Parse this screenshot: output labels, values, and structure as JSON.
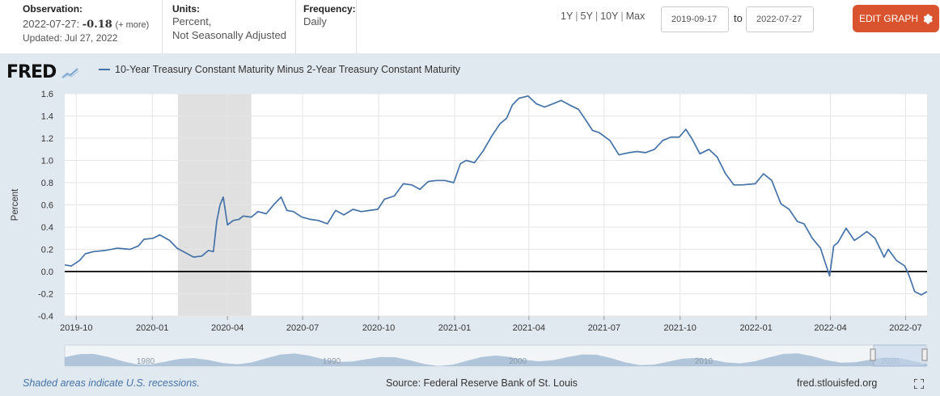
{
  "header": {
    "observation_label": "Observation:",
    "observation_date": "2022-07-27:",
    "observation_value": "-0.18",
    "observation_more": "(+ more)",
    "updated": "Updated: Jul 27, 2022",
    "units_label": "Units:",
    "units_line1": "Percent,",
    "units_line2": "Not Seasonally Adjusted",
    "frequency_label": "Frequency:",
    "frequency_value": "Daily",
    "range_1y": "1Y",
    "range_5y": "5Y",
    "range_10y": "10Y",
    "range_max": "Max",
    "range_sep": "|",
    "date_start": "2019-09-17",
    "date_to": "to",
    "date_end": "2022-07-27",
    "edit_button": "EDIT GRAPH"
  },
  "brand": {
    "logo_text": "FRED"
  },
  "footer": {
    "recession_note": "Shaded areas indicate U.S. recessions.",
    "source": "Source: Federal Reserve Bank of St. Louis",
    "site": "fred.stlouisfed.org"
  },
  "navigator_labels": [
    "1980",
    "1990",
    "2000",
    "2010",
    "2020"
  ],
  "colors": {
    "series": "#4572a7",
    "accent": "#d9542e",
    "recession": "#e0e0e0",
    "zero_line": "#000000"
  },
  "icons": {
    "edit": "gear-icon",
    "fullscreen": "fullscreen-icon",
    "logo_graph": "chart-icon"
  },
  "chart_data": {
    "type": "line",
    "title": "",
    "xlabel": "",
    "ylabel": "Percent",
    "ylim": [
      -0.4,
      1.6
    ],
    "yticks": [
      "1.6",
      "1.4",
      "1.2",
      "1.0",
      "0.8",
      "0.6",
      "0.4",
      "0.2",
      "0.0",
      "-0.2",
      "-0.4"
    ],
    "yticks_values": [
      1.6,
      1.4,
      1.2,
      1.0,
      0.8,
      0.6,
      0.4,
      0.2,
      0.0,
      -0.2,
      -0.4
    ],
    "xticks": [
      "2019-10",
      "2020-01",
      "2020-04",
      "2020-07",
      "2020-10",
      "2021-01",
      "2021-04",
      "2021-07",
      "2021-10",
      "2022-01",
      "2022-04",
      "2022-07"
    ],
    "xticks_dates": [
      "2019-10-01",
      "2020-01-01",
      "2020-04-01",
      "2020-07-01",
      "2020-10-01",
      "2021-01-01",
      "2021-04-01",
      "2021-07-01",
      "2021-10-01",
      "2022-01-01",
      "2022-04-01",
      "2022-07-01"
    ],
    "xrange": [
      "2019-09-17",
      "2022-07-27"
    ],
    "grid": true,
    "legend_position": "top-left",
    "recessions": [
      {
        "start": "2020-02-01",
        "end": "2020-04-30"
      }
    ],
    "series": [
      {
        "name": "10-Year Treasury Constant Maturity Minus 2-Year Treasury Constant Maturity",
        "x": [
          "2019-09-17",
          "2019-09-25",
          "2019-10-05",
          "2019-10-12",
          "2019-10-22",
          "2019-11-05",
          "2019-11-20",
          "2019-12-05",
          "2019-12-15",
          "2019-12-22",
          "2020-01-02",
          "2020-01-10",
          "2020-01-22",
          "2020-01-31",
          "2020-02-10",
          "2020-02-20",
          "2020-03-01",
          "2020-03-09",
          "2020-03-15",
          "2020-03-19",
          "2020-03-23",
          "2020-03-27",
          "2020-04-01",
          "2020-04-08",
          "2020-04-15",
          "2020-04-20",
          "2020-04-30",
          "2020-05-08",
          "2020-05-18",
          "2020-05-28",
          "2020-06-05",
          "2020-06-12",
          "2020-06-20",
          "2020-06-30",
          "2020-07-10",
          "2020-07-20",
          "2020-07-31",
          "2020-08-10",
          "2020-08-20",
          "2020-08-31",
          "2020-09-10",
          "2020-09-20",
          "2020-09-30",
          "2020-10-08",
          "2020-10-20",
          "2020-10-31",
          "2020-11-10",
          "2020-11-20",
          "2020-11-30",
          "2020-12-10",
          "2020-12-20",
          "2020-12-31",
          "2021-01-08",
          "2021-01-15",
          "2021-01-25",
          "2021-02-05",
          "2021-02-15",
          "2021-02-25",
          "2021-03-05",
          "2021-03-12",
          "2021-03-20",
          "2021-03-31",
          "2021-04-10",
          "2021-04-20",
          "2021-04-30",
          "2021-05-10",
          "2021-05-20",
          "2021-05-31",
          "2021-06-10",
          "2021-06-17",
          "2021-06-25",
          "2021-07-08",
          "2021-07-19",
          "2021-07-31",
          "2021-08-10",
          "2021-08-20",
          "2021-08-31",
          "2021-09-10",
          "2021-09-20",
          "2021-09-30",
          "2021-10-08",
          "2021-10-15",
          "2021-10-25",
          "2021-11-05",
          "2021-11-15",
          "2021-11-25",
          "2021-12-05",
          "2021-12-15",
          "2021-12-31",
          "2022-01-10",
          "2022-01-20",
          "2022-01-31",
          "2022-02-10",
          "2022-02-20",
          "2022-02-28",
          "2022-03-10",
          "2022-03-20",
          "2022-03-31",
          "2022-04-05",
          "2022-04-10",
          "2022-04-20",
          "2022-04-30",
          "2022-05-06",
          "2022-05-15",
          "2022-05-25",
          "2022-06-05",
          "2022-06-10",
          "2022-06-14",
          "2022-06-20",
          "2022-06-30",
          "2022-07-05",
          "2022-07-12",
          "2022-07-20",
          "2022-07-27"
        ],
        "values": [
          0.06,
          0.05,
          0.1,
          0.16,
          0.18,
          0.19,
          0.21,
          0.2,
          0.23,
          0.29,
          0.3,
          0.33,
          0.28,
          0.21,
          0.17,
          0.13,
          0.14,
          0.19,
          0.18,
          0.45,
          0.6,
          0.67,
          0.42,
          0.46,
          0.47,
          0.5,
          0.49,
          0.54,
          0.52,
          0.61,
          0.67,
          0.55,
          0.54,
          0.49,
          0.47,
          0.46,
          0.43,
          0.55,
          0.51,
          0.56,
          0.54,
          0.55,
          0.56,
          0.65,
          0.68,
          0.79,
          0.78,
          0.74,
          0.81,
          0.82,
          0.82,
          0.8,
          0.97,
          1.0,
          0.98,
          1.09,
          1.22,
          1.33,
          1.38,
          1.5,
          1.56,
          1.58,
          1.51,
          1.48,
          1.51,
          1.54,
          1.5,
          1.46,
          1.35,
          1.27,
          1.25,
          1.18,
          1.05,
          1.07,
          1.08,
          1.07,
          1.1,
          1.18,
          1.21,
          1.21,
          1.28,
          1.2,
          1.06,
          1.1,
          1.03,
          0.88,
          0.78,
          0.78,
          0.79,
          0.88,
          0.82,
          0.61,
          0.56,
          0.45,
          0.43,
          0.3,
          0.21,
          -0.04,
          0.23,
          0.26,
          0.39,
          0.28,
          0.31,
          0.36,
          0.3,
          0.13,
          0.2,
          0.16,
          0.1,
          0.05,
          -0.03,
          -0.18,
          -0.21,
          -0.18
        ]
      }
    ]
  }
}
